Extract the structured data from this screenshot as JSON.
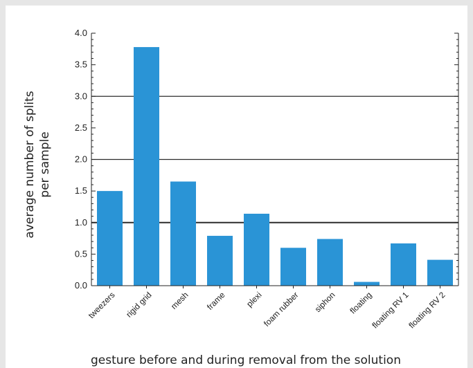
{
  "chart_data": {
    "type": "bar",
    "categories": [
      "tweezers",
      "rigid grid",
      "mesh",
      "frame",
      "plexi",
      "foam rubber",
      "siphon",
      "floating",
      "floating RV 1",
      "floating RV 2"
    ],
    "values": [
      1.5,
      3.78,
      1.65,
      0.79,
      1.14,
      0.6,
      0.74,
      0.06,
      0.67,
      0.41
    ],
    "xlabel": "gesture before and during removal from the solution",
    "ylabel_lines": [
      "average number of splits",
      "per sample"
    ],
    "ylim": [
      0,
      4.0
    ],
    "yticks": [
      "0.0",
      "0.5",
      "1.0",
      "1.5",
      "2.0",
      "2.5",
      "3.0",
      "3.5",
      "4.0"
    ],
    "grid": "horizontal at 1.0, 2.0, 3.0",
    "bar_color": "#2a94d6",
    "grid_color": "#2b2b2b"
  }
}
